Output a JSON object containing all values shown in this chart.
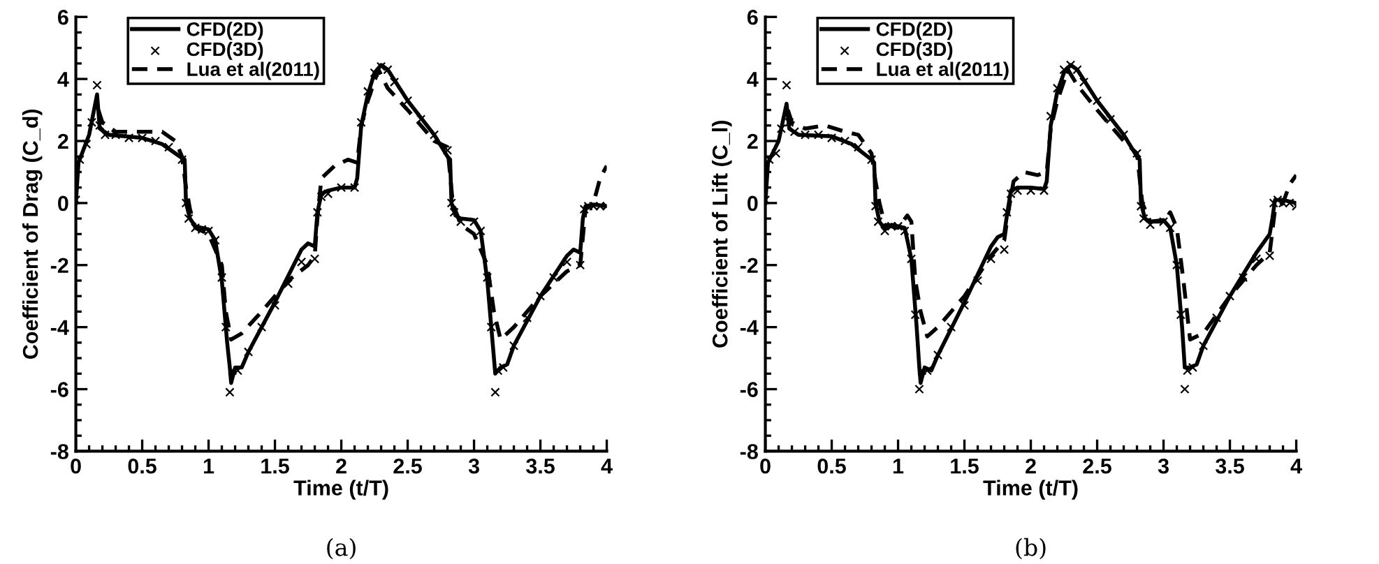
{
  "chart_data": [
    {
      "type": "line",
      "xlabel": "Time (t/T)",
      "ylabel": "Coefficient of Drag (C_d)",
      "xlim": [
        0,
        4
      ],
      "ylim": [
        -8,
        6
      ],
      "xticks": [
        0,
        0.5,
        1,
        1.5,
        2,
        2.5,
        3,
        3.5,
        4
      ],
      "yticks": [
        -8,
        -6,
        -4,
        -2,
        0,
        2,
        4,
        6
      ],
      "grid": false,
      "legend": "top left",
      "annotations": [
        "(a)"
      ],
      "series": [
        {
          "name": "CFD(2D)",
          "color": "#000000",
          "line_style": "solid",
          "marker": "none",
          "x": [
            0,
            0.02,
            0.1,
            0.16,
            0.18,
            0.25,
            0.5,
            0.65,
            0.8,
            0.82,
            0.83,
            0.86,
            0.9,
            0.95,
            1.0,
            1.05,
            1.1,
            1.14,
            1.16,
            1.17,
            1.2,
            1.25,
            1.3,
            1.5,
            1.7,
            1.75,
            1.8,
            1.82,
            1.85,
            1.9,
            2.0,
            2.1,
            2.12,
            2.15,
            2.2,
            2.25,
            2.3,
            2.35,
            2.5,
            2.7,
            2.8,
            2.82,
            2.83,
            2.86,
            2.9,
            3.0,
            3.05,
            3.1,
            3.14,
            3.16,
            3.2,
            3.25,
            3.3,
            3.5,
            3.7,
            3.75,
            3.8,
            3.82,
            3.84,
            3.9,
            4.0
          ],
          "values": [
            0,
            1.3,
            2.2,
            3.5,
            2.4,
            2.2,
            2.1,
            1.9,
            1.45,
            1.4,
            0,
            -0.5,
            -0.75,
            -0.8,
            -0.85,
            -1.2,
            -2.5,
            -4.5,
            -5.3,
            -5.8,
            -5.3,
            -5.3,
            -4.8,
            -3.2,
            -1.5,
            -1.3,
            -1.4,
            -0.3,
            0.3,
            0.4,
            0.5,
            0.5,
            0.8,
            2.5,
            3.5,
            4.2,
            4.45,
            4.3,
            3.3,
            2.2,
            1.5,
            1.4,
            0,
            -0.4,
            -0.5,
            -0.55,
            -0.9,
            -2.5,
            -4.5,
            -5.5,
            -5.3,
            -5.2,
            -4.6,
            -3.0,
            -1.7,
            -1.5,
            -1.6,
            -0.5,
            -0.1,
            -0.05,
            -0.1
          ]
        },
        {
          "name": "CFD(3D)",
          "type": "scatter",
          "color": "#000000",
          "marker": "cross",
          "x": [
            0,
            0.03,
            0.08,
            0.12,
            0.16,
            0.18,
            0.22,
            0.3,
            0.4,
            0.5,
            0.6,
            0.7,
            0.8,
            0.83,
            0.85,
            0.9,
            0.95,
            1.0,
            1.05,
            1.1,
            1.13,
            1.16,
            1.18,
            1.22,
            1.3,
            1.4,
            1.5,
            1.6,
            1.7,
            1.8,
            1.82,
            1.85,
            1.9,
            2.0,
            2.1,
            2.15,
            2.2,
            2.25,
            2.3,
            2.35,
            2.4,
            2.5,
            2.6,
            2.7,
            2.8,
            2.83,
            2.85,
            2.9,
            3.0,
            3.05,
            3.1,
            3.13,
            3.16,
            3.18,
            3.22,
            3.3,
            3.4,
            3.5,
            3.6,
            3.7,
            3.8,
            3.83,
            3.86,
            3.9,
            3.95,
            4.0
          ],
          "values": [
            0.1,
            1.4,
            1.9,
            2.6,
            3.8,
            2.5,
            2.2,
            2.2,
            2.1,
            2.1,
            2.0,
            1.8,
            1.4,
            0,
            -0.5,
            -0.8,
            -0.85,
            -0.9,
            -1.2,
            -2.4,
            -4.0,
            -6.1,
            -5.4,
            -5.4,
            -4.8,
            -4.0,
            -3.3,
            -2.6,
            -1.9,
            -1.8,
            -0.3,
            0.2,
            0.3,
            0.5,
            0.5,
            2.6,
            3.6,
            4.2,
            4.4,
            4.3,
            3.9,
            3.3,
            2.7,
            2.2,
            1.7,
            0,
            -0.3,
            -0.6,
            -0.6,
            -0.9,
            -2.4,
            -4.0,
            -6.1,
            -5.4,
            -5.3,
            -4.6,
            -3.7,
            -3.0,
            -2.4,
            -1.9,
            -2.0,
            -0.2,
            -0.1,
            -0.1,
            -0.1,
            -0.1
          ]
        },
        {
          "name": "Lua et al(2011)",
          "color": "#000000",
          "line_style": "dashed",
          "marker": "none",
          "x": [
            0.17,
            0.2,
            0.3,
            0.5,
            0.65,
            0.75,
            0.8,
            0.83,
            0.86,
            0.9,
            1.0,
            1.1,
            1.13,
            1.17,
            1.25,
            1.4,
            1.6,
            1.75,
            1.8,
            1.82,
            1.85,
            1.95,
            2.05,
            2.12,
            2.15,
            2.2,
            2.28,
            2.35,
            2.5,
            2.7,
            2.8,
            2.84,
            2.9,
            3.0,
            3.1,
            3.15,
            3.2,
            3.3,
            3.5,
            3.7,
            3.8,
            3.84,
            3.9,
            3.95,
            4.0
          ],
          "values": [
            3.0,
            2.6,
            2.3,
            2.3,
            2.3,
            2.0,
            1.5,
            0.5,
            -0.2,
            -0.8,
            -1.0,
            -2.0,
            -3.5,
            -4.4,
            -4.2,
            -3.5,
            -2.5,
            -2.0,
            -1.7,
            -0.5,
            0.8,
            1.2,
            1.4,
            1.3,
            2.5,
            3.3,
            4.3,
            3.7,
            3.0,
            2.0,
            1.8,
            0,
            -0.7,
            -1.0,
            -2.0,
            -3.5,
            -4.4,
            -4.0,
            -3.0,
            -2.2,
            -2.0,
            -0.2,
            0.0,
            0.8,
            1.2
          ]
        }
      ]
    },
    {
      "type": "line",
      "xlabel": "Time (t/T)",
      "ylabel": "Coefficient of Lift (C_l)",
      "xlim": [
        0,
        4
      ],
      "ylim": [
        -8,
        6
      ],
      "xticks": [
        0,
        0.5,
        1,
        1.5,
        2,
        2.5,
        3,
        3.5,
        4
      ],
      "yticks": [
        -8,
        -6,
        -4,
        -2,
        0,
        2,
        4,
        6
      ],
      "grid": false,
      "legend": "top left",
      "annotations": [
        "(b)"
      ],
      "series": [
        {
          "name": "CFD(2D)",
          "color": "#000000",
          "line_style": "solid",
          "marker": "none",
          "x": [
            0,
            0.02,
            0.1,
            0.16,
            0.18,
            0.25,
            0.5,
            0.65,
            0.8,
            0.82,
            0.83,
            0.86,
            0.9,
            0.95,
            1.0,
            1.05,
            1.1,
            1.14,
            1.16,
            1.17,
            1.2,
            1.25,
            1.3,
            1.5,
            1.7,
            1.75,
            1.8,
            1.82,
            1.85,
            1.9,
            2.0,
            2.1,
            2.12,
            2.15,
            2.2,
            2.25,
            2.3,
            2.35,
            2.5,
            2.7,
            2.8,
            2.82,
            2.83,
            2.86,
            2.9,
            3.0,
            3.05,
            3.1,
            3.14,
            3.16,
            3.2,
            3.25,
            3.3,
            3.5,
            3.7,
            3.75,
            3.8,
            3.82,
            3.84,
            3.9,
            4.0
          ],
          "values": [
            0,
            1.3,
            2.0,
            3.2,
            2.4,
            2.2,
            2.15,
            1.9,
            1.4,
            1.3,
            0,
            -0.6,
            -0.85,
            -0.7,
            -0.75,
            -0.8,
            -1.8,
            -4.0,
            -5.3,
            -5.8,
            -5.3,
            -5.4,
            -4.9,
            -3.2,
            -1.4,
            -1.1,
            -1.0,
            -0.4,
            0.4,
            0.5,
            0.5,
            0.45,
            0.7,
            2.5,
            3.6,
            4.2,
            4.45,
            4.3,
            3.3,
            2.2,
            1.5,
            1.4,
            0,
            -0.5,
            -0.6,
            -0.55,
            -0.8,
            -2.0,
            -4.0,
            -5.3,
            -5.3,
            -5.2,
            -4.6,
            -3.0,
            -1.6,
            -1.3,
            -1.0,
            -0.5,
            0.1,
            0.1,
            0.0
          ]
        },
        {
          "name": "CFD(3D)",
          "type": "scatter",
          "color": "#000000",
          "marker": "cross",
          "x": [
            0,
            0.03,
            0.08,
            0.12,
            0.16,
            0.18,
            0.22,
            0.3,
            0.4,
            0.5,
            0.6,
            0.7,
            0.8,
            0.83,
            0.85,
            0.9,
            0.95,
            1.0,
            1.05,
            1.1,
            1.13,
            1.16,
            1.18,
            1.22,
            1.3,
            1.4,
            1.5,
            1.6,
            1.7,
            1.8,
            1.82,
            1.85,
            1.9,
            2.0,
            2.1,
            2.15,
            2.2,
            2.25,
            2.3,
            2.35,
            2.4,
            2.5,
            2.6,
            2.7,
            2.8,
            2.83,
            2.85,
            2.9,
            3.0,
            3.05,
            3.1,
            3.13,
            3.16,
            3.18,
            3.22,
            3.3,
            3.4,
            3.5,
            3.6,
            3.7,
            3.8,
            3.83,
            3.86,
            3.9,
            3.95,
            4.0
          ],
          "values": [
            0.1,
            1.4,
            1.6,
            2.4,
            3.8,
            2.6,
            2.3,
            2.2,
            2.2,
            2.1,
            2.0,
            1.8,
            1.4,
            -0.1,
            -0.6,
            -0.9,
            -0.75,
            -0.75,
            -0.9,
            -1.8,
            -3.6,
            -6.0,
            -5.4,
            -5.4,
            -4.9,
            -4.0,
            -3.3,
            -2.5,
            -1.8,
            -1.5,
            -0.3,
            0.3,
            0.4,
            0.4,
            0.4,
            2.8,
            3.7,
            4.3,
            4.45,
            4.3,
            3.9,
            3.3,
            2.7,
            2.2,
            1.6,
            -0.1,
            -0.5,
            -0.7,
            -0.6,
            -0.8,
            -2.0,
            -3.6,
            -6.0,
            -5.4,
            -5.3,
            -4.6,
            -3.7,
            -3.0,
            -2.4,
            -1.8,
            -1.7,
            0.0,
            0.1,
            0.0,
            0.0,
            -0.1
          ]
        },
        {
          "name": "Lua et al(2011)",
          "color": "#000000",
          "line_style": "dashed",
          "marker": "none",
          "x": [
            0.17,
            0.2,
            0.3,
            0.45,
            0.6,
            0.7,
            0.8,
            0.83,
            0.86,
            0.9,
            1.0,
            1.07,
            1.1,
            1.13,
            1.17,
            1.22,
            1.3,
            1.5,
            1.7,
            1.8,
            1.83,
            1.87,
            1.95,
            2.05,
            2.12,
            2.15,
            2.2,
            2.28,
            2.35,
            2.5,
            2.7,
            2.8,
            2.84,
            2.9,
            3.0,
            3.05,
            3.1,
            3.15,
            3.2,
            3.3,
            3.5,
            3.7,
            3.8,
            3.84,
            3.9,
            3.95,
            4.0
          ],
          "values": [
            3.0,
            2.6,
            2.4,
            2.5,
            2.3,
            2.2,
            1.6,
            0.7,
            0.0,
            -0.7,
            -0.8,
            -0.4,
            -0.6,
            -2.5,
            -3.5,
            -4.3,
            -4.0,
            -3.0,
            -1.7,
            -1.2,
            -0.3,
            0.7,
            1.0,
            0.9,
            1.0,
            2.4,
            3.3,
            4.3,
            3.8,
            3.0,
            2.0,
            1.6,
            0,
            -0.6,
            -0.6,
            -0.3,
            -0.8,
            -2.5,
            -4.4,
            -4.2,
            -3.0,
            -2.0,
            -1.6,
            -0.2,
            0.0,
            0.6,
            0.9
          ]
        }
      ]
    }
  ]
}
